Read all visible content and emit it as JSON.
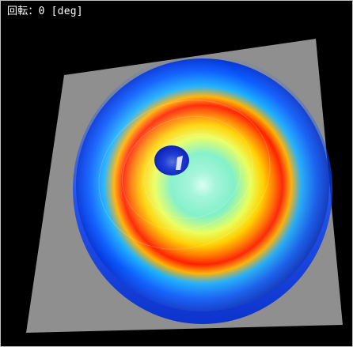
{
  "viewer": {
    "rotation_readout": "回転：0 [deg]",
    "rotation_deg": 0,
    "colors": {
      "background": "#000000",
      "plane": "#8f8f8f",
      "surface_outer": "#0a47ff",
      "surface_mid": "#19a9ff",
      "surface_inner": "#78f1d2",
      "ridge_peak": "#ff1f00",
      "ridge_side": "#ffad00"
    }
  }
}
